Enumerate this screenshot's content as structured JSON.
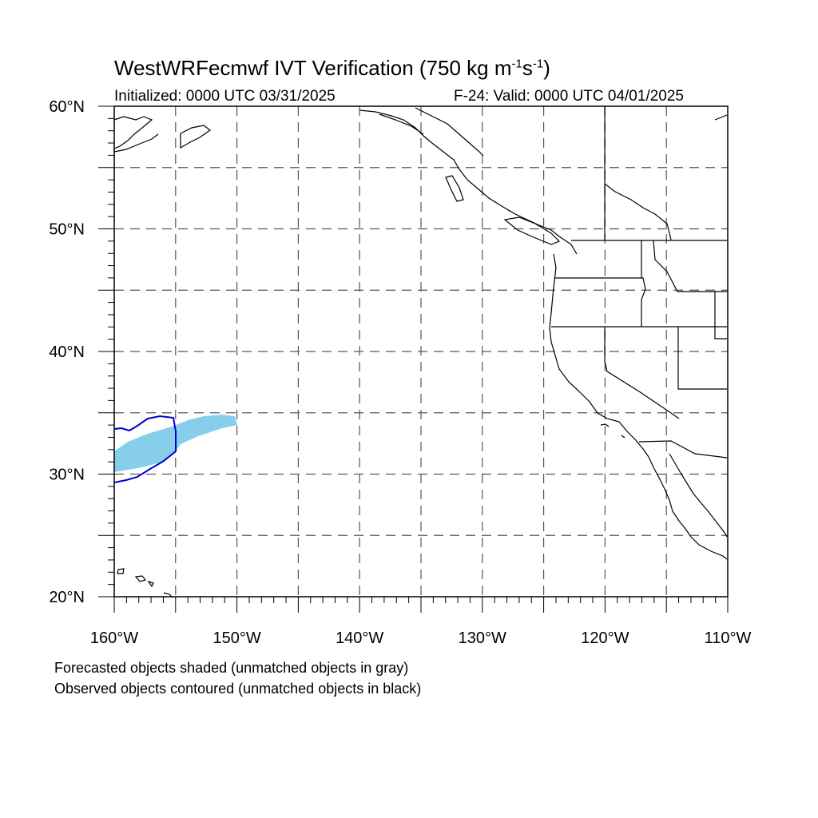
{
  "title": {
    "prefix": "WestWRFecmwf IVT Verification (750 kg m",
    "exp1": "-1",
    "mid": "s",
    "exp2": "-1",
    "suffix": ")"
  },
  "initialized": "Initialized: 0000 UTC 03/31/2025",
  "valid": "F-24: Valid: 0000 UTC 04/01/2025",
  "map": {
    "lon_range": [
      -160,
      -110
    ],
    "lat_range": [
      20,
      60
    ],
    "grid": "dashed every 5 degrees",
    "lat_labels": [
      "20°N",
      "30°N",
      "40°N",
      "50°N",
      "60°N"
    ],
    "lon_labels": [
      "160°W",
      "150°W",
      "140°W",
      "130°W",
      "120°W",
      "110°W"
    ]
  },
  "objects": {
    "forecast_color": "#87CEEB",
    "observed_color": "#0000CD"
  },
  "legend": {
    "line1": "Forecasted objects shaded (unmatched objects in gray)",
    "line2": "Observed objects contoured (unmatched objects in black)"
  }
}
